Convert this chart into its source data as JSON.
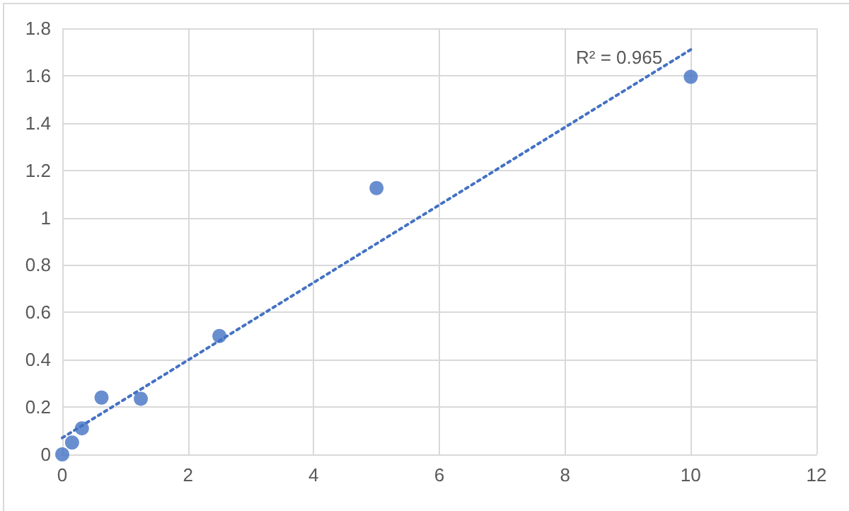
{
  "chart_data": {
    "type": "scatter",
    "marker": "circle",
    "grid": true,
    "xlim": [
      0,
      12
    ],
    "xticks": [
      0,
      2,
      4,
      6,
      8,
      10,
      12
    ],
    "ylim": [
      0,
      1.8
    ],
    "yticks": [
      0,
      0.2,
      0.4,
      0.6,
      0.8,
      1,
      1.2,
      1.4,
      1.6,
      1.8
    ],
    "series": [
      {
        "color": "#4472c4",
        "x": [
          0,
          0.156,
          0.3125,
          0.625,
          1.25,
          2.5,
          5,
          10
        ],
        "values": [
          0,
          0.05,
          0.11,
          0.24,
          0.235,
          0.5,
          1.125,
          1.595
        ]
      },
      {
        "type": "line",
        "color": "#4472c4",
        "line_style": "dotted",
        "marker": "none",
        "x": [
          0,
          10
        ],
        "values": [
          0.07,
          1.71
        ]
      }
    ],
    "annotations": [
      "R² = 0.965"
    ]
  }
}
